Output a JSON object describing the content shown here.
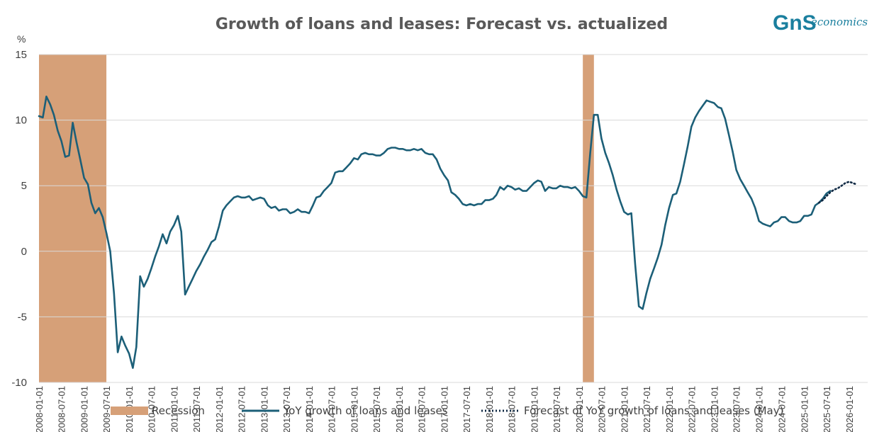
{
  "logo": {
    "mark": "GnS",
    "text": "economics"
  },
  "colors": {
    "recession": "#d6a078",
    "series": "#1c5f78",
    "forecast": "#102a44",
    "grid": "#d9d9d9",
    "text": "#404040",
    "logo": "#1a7f9e"
  },
  "chart_data": {
    "type": "line",
    "title": "Growth of loans and leases: Forecast vs. actualized",
    "ylabel": "%",
    "ylim": [
      -10,
      15
    ],
    "yticks": [
      15,
      10,
      5,
      0,
      -5,
      -10
    ],
    "xlim": [
      "2008-01-01",
      "2026-06-01"
    ],
    "xtick_labels": [
      "2008-01-01",
      "2008-07-01",
      "2009-01-01",
      "2009-07-01",
      "2010-01-01",
      "2010-07-01",
      "2011-01-01",
      "2011-07-01",
      "2012-01-01",
      "2012-07-01",
      "2013-01-01",
      "2013-07-01",
      "2014-01-01",
      "2014-07-01",
      "2015-01-01",
      "2015-07-01",
      "2016-01-01",
      "2016-07-01",
      "2017-01-01",
      "2017-07-01",
      "2018-01-01",
      "2018-07-01",
      "2019-01-01",
      "2019-07-01",
      "2020-01-01",
      "2020-07-01",
      "2021-01-01",
      "2021-07-01",
      "2022-01-01",
      "2022-07-01",
      "2023-01-01",
      "2023-07-01",
      "2024-01-01",
      "2024-07-01",
      "2025-01-01",
      "2025-07-01",
      "2026-01-01"
    ],
    "recessions": [
      {
        "start": "2008-01-01",
        "end": "2009-07-01"
      },
      {
        "start": "2020-02-01",
        "end": "2020-05-01"
      }
    ],
    "series": [
      {
        "name": "YoY growth of loans and leases",
        "style": "solid",
        "points": [
          [
            "2008-01-01",
            10.3
          ],
          [
            "2008-02-01",
            10.2
          ],
          [
            "2008-03-01",
            11.8
          ],
          [
            "2008-04-01",
            11.2
          ],
          [
            "2008-05-01",
            10.4
          ],
          [
            "2008-06-01",
            9.2
          ],
          [
            "2008-07-01",
            8.4
          ],
          [
            "2008-08-01",
            7.2
          ],
          [
            "2008-09-01",
            7.3
          ],
          [
            "2008-10-01",
            9.8
          ],
          [
            "2008-11-01",
            8.3
          ],
          [
            "2008-12-01",
            7.0
          ],
          [
            "2009-01-01",
            5.6
          ],
          [
            "2009-02-01",
            5.1
          ],
          [
            "2009-03-01",
            3.7
          ],
          [
            "2009-04-01",
            2.9
          ],
          [
            "2009-05-01",
            3.3
          ],
          [
            "2009-06-01",
            2.6
          ],
          [
            "2009-07-01",
            1.4
          ],
          [
            "2009-08-01",
            0.0
          ],
          [
            "2009-09-01",
            -3.2
          ],
          [
            "2009-10-01",
            -7.7
          ],
          [
            "2009-11-01",
            -6.5
          ],
          [
            "2009-12-01",
            -7.2
          ],
          [
            "2010-01-01",
            -7.8
          ],
          [
            "2010-02-01",
            -8.9
          ],
          [
            "2010-03-01",
            -7.3
          ],
          [
            "2010-04-01",
            -1.9
          ],
          [
            "2010-05-01",
            -2.7
          ],
          [
            "2010-06-01",
            -2.1
          ],
          [
            "2010-07-01",
            -1.3
          ],
          [
            "2010-08-01",
            -0.4
          ],
          [
            "2010-09-01",
            0.4
          ],
          [
            "2010-10-01",
            1.3
          ],
          [
            "2010-11-01",
            0.6
          ],
          [
            "2010-12-01",
            1.5
          ],
          [
            "2011-01-01",
            2.0
          ],
          [
            "2011-02-01",
            2.7
          ],
          [
            "2011-03-01",
            1.5
          ],
          [
            "2011-04-01",
            -3.3
          ],
          [
            "2011-05-01",
            -2.7
          ],
          [
            "2011-06-01",
            -2.1
          ],
          [
            "2011-07-01",
            -1.5
          ],
          [
            "2011-08-01",
            -1.0
          ],
          [
            "2011-09-01",
            -0.4
          ],
          [
            "2011-10-01",
            0.1
          ],
          [
            "2011-11-01",
            0.7
          ],
          [
            "2011-12-01",
            0.9
          ],
          [
            "2012-01-01",
            1.9
          ],
          [
            "2012-02-01",
            3.1
          ],
          [
            "2012-03-01",
            3.5
          ],
          [
            "2012-04-01",
            3.8
          ],
          [
            "2012-05-01",
            4.1
          ],
          [
            "2012-06-01",
            4.2
          ],
          [
            "2012-07-01",
            4.1
          ],
          [
            "2012-08-01",
            4.1
          ],
          [
            "2012-09-01",
            4.2
          ],
          [
            "2012-10-01",
            3.9
          ],
          [
            "2012-11-01",
            4.0
          ],
          [
            "2012-12-01",
            4.1
          ],
          [
            "2013-01-01",
            4.0
          ],
          [
            "2013-02-01",
            3.5
          ],
          [
            "2013-03-01",
            3.3
          ],
          [
            "2013-04-01",
            3.4
          ],
          [
            "2013-05-01",
            3.1
          ],
          [
            "2013-06-01",
            3.2
          ],
          [
            "2013-07-01",
            3.2
          ],
          [
            "2013-08-01",
            2.9
          ],
          [
            "2013-09-01",
            3.0
          ],
          [
            "2013-10-01",
            3.2
          ],
          [
            "2013-11-01",
            3.0
          ],
          [
            "2013-12-01",
            3.0
          ],
          [
            "2014-01-01",
            2.9
          ],
          [
            "2014-02-01",
            3.5
          ],
          [
            "2014-03-01",
            4.1
          ],
          [
            "2014-04-01",
            4.2
          ],
          [
            "2014-05-01",
            4.6
          ],
          [
            "2014-06-01",
            4.9
          ],
          [
            "2014-07-01",
            5.2
          ],
          [
            "2014-08-01",
            6.0
          ],
          [
            "2014-09-01",
            6.1
          ],
          [
            "2014-10-01",
            6.1
          ],
          [
            "2014-11-01",
            6.4
          ],
          [
            "2014-12-01",
            6.7
          ],
          [
            "2015-01-01",
            7.1
          ],
          [
            "2015-02-01",
            7.0
          ],
          [
            "2015-03-01",
            7.4
          ],
          [
            "2015-04-01",
            7.5
          ],
          [
            "2015-05-01",
            7.4
          ],
          [
            "2015-06-01",
            7.4
          ],
          [
            "2015-07-01",
            7.3
          ],
          [
            "2015-08-01",
            7.3
          ],
          [
            "2015-09-01",
            7.5
          ],
          [
            "2015-10-01",
            7.8
          ],
          [
            "2015-11-01",
            7.9
          ],
          [
            "2015-12-01",
            7.9
          ],
          [
            "2016-01-01",
            7.8
          ],
          [
            "2016-02-01",
            7.8
          ],
          [
            "2016-03-01",
            7.7
          ],
          [
            "2016-04-01",
            7.7
          ],
          [
            "2016-05-01",
            7.8
          ],
          [
            "2016-06-01",
            7.7
          ],
          [
            "2016-07-01",
            7.8
          ],
          [
            "2016-08-01",
            7.5
          ],
          [
            "2016-09-01",
            7.4
          ],
          [
            "2016-10-01",
            7.4
          ],
          [
            "2016-11-01",
            7.0
          ],
          [
            "2016-12-01",
            6.3
          ],
          [
            "2017-01-01",
            5.8
          ],
          [
            "2017-02-01",
            5.4
          ],
          [
            "2017-03-01",
            4.5
          ],
          [
            "2017-04-01",
            4.3
          ],
          [
            "2017-05-01",
            4.0
          ],
          [
            "2017-06-01",
            3.6
          ],
          [
            "2017-07-01",
            3.5
          ],
          [
            "2017-08-01",
            3.6
          ],
          [
            "2017-09-01",
            3.5
          ],
          [
            "2017-10-01",
            3.6
          ],
          [
            "2017-11-01",
            3.6
          ],
          [
            "2017-12-01",
            3.9
          ],
          [
            "2018-01-01",
            3.9
          ],
          [
            "2018-02-01",
            4.0
          ],
          [
            "2018-03-01",
            4.3
          ],
          [
            "2018-04-01",
            4.9
          ],
          [
            "2018-05-01",
            4.7
          ],
          [
            "2018-06-01",
            5.0
          ],
          [
            "2018-07-01",
            4.9
          ],
          [
            "2018-08-01",
            4.7
          ],
          [
            "2018-09-01",
            4.8
          ],
          [
            "2018-10-01",
            4.6
          ],
          [
            "2018-11-01",
            4.6
          ],
          [
            "2018-12-01",
            4.9
          ],
          [
            "2019-01-01",
            5.2
          ],
          [
            "2019-02-01",
            5.4
          ],
          [
            "2019-03-01",
            5.3
          ],
          [
            "2019-04-01",
            4.6
          ],
          [
            "2019-05-01",
            4.9
          ],
          [
            "2019-06-01",
            4.8
          ],
          [
            "2019-07-01",
            4.8
          ],
          [
            "2019-08-01",
            5.0
          ],
          [
            "2019-09-01",
            4.9
          ],
          [
            "2019-10-01",
            4.9
          ],
          [
            "2019-11-01",
            4.8
          ],
          [
            "2019-12-01",
            4.9
          ],
          [
            "2020-01-01",
            4.6
          ],
          [
            "2020-02-01",
            4.2
          ],
          [
            "2020-03-01",
            4.1
          ],
          [
            "2020-04-01",
            7.5
          ],
          [
            "2020-05-01",
            10.4
          ],
          [
            "2020-06-01",
            10.4
          ],
          [
            "2020-07-01",
            8.6
          ],
          [
            "2020-08-01",
            7.5
          ],
          [
            "2020-09-01",
            6.7
          ],
          [
            "2020-10-01",
            5.8
          ],
          [
            "2020-11-01",
            4.7
          ],
          [
            "2020-12-01",
            3.8
          ],
          [
            "2021-01-01",
            3.0
          ],
          [
            "2021-02-01",
            2.8
          ],
          [
            "2021-03-01",
            2.9
          ],
          [
            "2021-04-01",
            -1.0
          ],
          [
            "2021-05-01",
            -4.2
          ],
          [
            "2021-06-01",
            -4.4
          ],
          [
            "2021-07-01",
            -3.2
          ],
          [
            "2021-08-01",
            -2.1
          ],
          [
            "2021-09-01",
            -1.3
          ],
          [
            "2021-10-01",
            -0.5
          ],
          [
            "2021-11-01",
            0.5
          ],
          [
            "2021-12-01",
            2.0
          ],
          [
            "2022-01-01",
            3.3
          ],
          [
            "2022-02-01",
            4.3
          ],
          [
            "2022-03-01",
            4.4
          ],
          [
            "2022-04-01",
            5.3
          ],
          [
            "2022-05-01",
            6.6
          ],
          [
            "2022-06-01",
            8.0
          ],
          [
            "2022-07-01",
            9.5
          ],
          [
            "2022-08-01",
            10.2
          ],
          [
            "2022-09-01",
            10.7
          ],
          [
            "2022-10-01",
            11.1
          ],
          [
            "2022-11-01",
            11.5
          ],
          [
            "2022-12-01",
            11.4
          ],
          [
            "2023-01-01",
            11.3
          ],
          [
            "2023-02-01",
            11.0
          ],
          [
            "2023-03-01",
            10.9
          ],
          [
            "2023-04-01",
            10.1
          ],
          [
            "2023-05-01",
            8.9
          ],
          [
            "2023-06-01",
            7.6
          ],
          [
            "2023-07-01",
            6.2
          ],
          [
            "2023-08-01",
            5.5
          ],
          [
            "2023-09-01",
            5.0
          ],
          [
            "2023-10-01",
            4.5
          ],
          [
            "2023-11-01",
            4.0
          ],
          [
            "2023-12-01",
            3.3
          ],
          [
            "2024-01-01",
            2.3
          ],
          [
            "2024-02-01",
            2.1
          ],
          [
            "2024-03-01",
            2.0
          ],
          [
            "2024-04-01",
            1.9
          ],
          [
            "2024-05-01",
            2.2
          ],
          [
            "2024-06-01",
            2.3
          ],
          [
            "2024-07-01",
            2.6
          ],
          [
            "2024-08-01",
            2.6
          ],
          [
            "2024-09-01",
            2.3
          ],
          [
            "2024-10-01",
            2.2
          ],
          [
            "2024-11-01",
            2.2
          ],
          [
            "2024-12-01",
            2.3
          ],
          [
            "2025-01-01",
            2.7
          ],
          [
            "2025-02-01",
            2.7
          ],
          [
            "2025-03-01",
            2.8
          ],
          [
            "2025-04-01",
            3.5
          ],
          [
            "2025-05-01",
            3.7
          ],
          [
            "2025-06-01",
            4.0
          ],
          [
            "2025-07-01",
            4.4
          ],
          [
            "2025-08-01",
            4.6
          ]
        ]
      },
      {
        "name": "Forecast of YoY growth of loans and leases (May)",
        "style": "dotted",
        "points": [
          [
            "2025-05-01",
            3.7
          ],
          [
            "2025-06-01",
            3.9
          ],
          [
            "2025-07-01",
            4.2
          ],
          [
            "2025-08-01",
            4.5
          ],
          [
            "2025-09-01",
            4.7
          ],
          [
            "2025-10-01",
            4.8
          ],
          [
            "2025-11-01",
            5.0
          ],
          [
            "2025-12-01",
            5.2
          ],
          [
            "2026-01-01",
            5.3
          ],
          [
            "2026-02-01",
            5.2
          ],
          [
            "2026-03-01",
            5.1
          ]
        ]
      }
    ],
    "legend": {
      "position": "bottom",
      "items": [
        {
          "label": "Recession",
          "kind": "patch"
        },
        {
          "label": "YoY growth of loans and leases",
          "kind": "solid"
        },
        {
          "label": "Forecast of YoY growth of loans and leases (May)",
          "kind": "dotted"
        }
      ]
    }
  }
}
